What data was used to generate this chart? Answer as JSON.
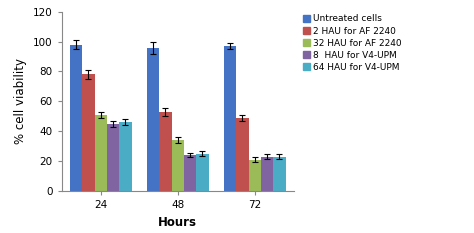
{
  "groups": [
    "24",
    "48",
    "72"
  ],
  "series": [
    {
      "label": "Untreated cells",
      "color": "#4472C4",
      "values": [
        98,
        96,
        97
      ],
      "errors": [
        3,
        4,
        2
      ]
    },
    {
      "label": "2 HAU for AF 2240",
      "color": "#C0504D",
      "values": [
        78,
        53,
        49
      ],
      "errors": [
        3,
        2.5,
        2
      ]
    },
    {
      "label": "32 HAU for AF 2240",
      "color": "#9BBB59",
      "values": [
        51,
        34,
        21
      ],
      "errors": [
        2,
        2,
        1.5
      ]
    },
    {
      "label": "8  HAU for V4-UPM",
      "color": "#8064A2",
      "values": [
        45,
        24,
        23
      ],
      "errors": [
        2,
        1.5,
        1.5
      ]
    },
    {
      "label": "64 HAU for V4-UPM",
      "color": "#4BACC6",
      "values": [
        46,
        25,
        23
      ],
      "errors": [
        2,
        1.5,
        1.5
      ]
    }
  ],
  "ylabel": "% cell viability",
  "xlabel": "Hours",
  "ylim": [
    0,
    120
  ],
  "yticks": [
    0,
    20,
    40,
    60,
    80,
    100,
    120
  ],
  "background_color": "#ffffff",
  "bar_width": 0.12,
  "group_centers": [
    0.35,
    1.1,
    1.85
  ],
  "legend_fontsize": 6.5,
  "axis_fontsize": 8.5,
  "tick_fontsize": 7.5
}
